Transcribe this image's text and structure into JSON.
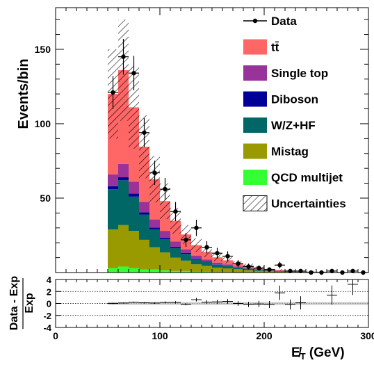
{
  "chart_data": [
    {
      "type": "bar",
      "stacked": true,
      "ylabel": "Events/bin",
      "xlim": [
        0,
        300
      ],
      "ylim": [
        0,
        178
      ],
      "x_ticks": [
        "0",
        "100",
        "200",
        "300"
      ],
      "y_ticks": [
        "50",
        "100",
        "150"
      ],
      "bin_width": 10,
      "bin_left_edges": [
        50,
        60,
        70,
        80,
        90,
        100,
        110,
        120,
        130,
        140,
        150,
        160,
        170,
        180,
        190,
        200,
        210,
        220,
        230,
        240,
        250,
        260,
        270,
        280,
        290
      ],
      "series": [
        {
          "name": "QCD multijet",
          "color": "#33ff33",
          "values": [
            3,
            4,
            3,
            2,
            2,
            1.5,
            1,
            1,
            0.5,
            0.5,
            0.3,
            0.3,
            0.2,
            0.2,
            0.1,
            0.1,
            0.1,
            0,
            0,
            0,
            0,
            0,
            0,
            0,
            0
          ]
        },
        {
          "name": "Mistag",
          "color": "#999900",
          "values": [
            26,
            28,
            25,
            20,
            15,
            12,
            9,
            7,
            5,
            4,
            3,
            2.5,
            2,
            1.5,
            1,
            0.8,
            0.6,
            0.4,
            0.3,
            0.2,
            0.2,
            0.1,
            0.1,
            0.1,
            0
          ]
        },
        {
          "name": "W/Z+HF",
          "color": "#006666",
          "values": [
            27,
            30,
            23,
            17,
            12,
            9,
            6.5,
            4.5,
            3.5,
            2.5,
            2,
            1.5,
            1,
            0.8,
            0.6,
            0.4,
            0.3,
            0.2,
            0.2,
            0.1,
            0.1,
            0.1,
            0,
            0,
            0
          ]
        },
        {
          "name": "Diboson",
          "color": "#000099",
          "values": [
            2,
            2,
            2,
            1.5,
            1.2,
            1,
            0.8,
            0.6,
            0.4,
            0.3,
            0.2,
            0.2,
            0.1,
            0.1,
            0.1,
            0,
            0,
            0,
            0,
            0,
            0,
            0,
            0,
            0,
            0
          ]
        },
        {
          "name": "Single top",
          "color": "#993399",
          "values": [
            8,
            9,
            8,
            7,
            5.5,
            4.5,
            3.5,
            2.5,
            2,
            1.5,
            1.2,
            1,
            0.7,
            0.5,
            0.4,
            0.3,
            0.2,
            0.2,
            0.1,
            0.1,
            0.1,
            0,
            0,
            0,
            0
          ]
        },
        {
          "name": "tt̄",
          "color": "#ff6666",
          "values": [
            54,
            63,
            50,
            37,
            27,
            20,
            14,
            10,
            7,
            5,
            3.5,
            2.7,
            2,
            1.6,
            1.1,
            0.8,
            0.6,
            0.4,
            0.3,
            0.2,
            0.2,
            0.1,
            0.1,
            0.1,
            0
          ]
        }
      ],
      "totals": [
        120,
        136,
        111,
        84.5,
        62.7,
        48,
        34.8,
        25.6,
        18.4,
        13.8,
        10.2,
        8.2,
        6,
        4.7,
        3.3,
        2.4,
        1.8,
        1.2,
        0.9,
        0.6,
        0.6,
        0.3,
        0.2,
        0.2,
        0
      ],
      "uncertainty_fraction": 0.25,
      "data": {
        "name": "Data",
        "x": [
          55,
          65,
          75,
          85,
          95,
          105,
          115,
          125,
          135,
          145,
          155,
          165,
          175,
          185,
          195,
          205,
          215,
          225,
          235,
          245,
          255,
          265,
          275,
          285,
          295
        ],
        "y": [
          121,
          145,
          134,
          94,
          67,
          56,
          41,
          22,
          30,
          17,
          13,
          11,
          6,
          4,
          3,
          2,
          5,
          1,
          1,
          0,
          0,
          1,
          0,
          1,
          0
        ],
        "yerr": [
          11,
          12,
          11.6,
          9.7,
          8.2,
          7.5,
          6.4,
          4.7,
          5.5,
          4.1,
          3.6,
          3.3,
          2.4,
          2,
          1.7,
          1.4,
          2.2,
          1,
          1,
          0,
          0,
          1,
          0,
          1,
          0
        ]
      },
      "legend": {
        "placement": "top-right",
        "items": [
          {
            "label": "Data",
            "kind": "marker"
          },
          {
            "label": "tt̄",
            "kind": "fill",
            "color": "#ff6666"
          },
          {
            "label": "Single top",
            "kind": "fill",
            "color": "#993399"
          },
          {
            "label": "Diboson",
            "kind": "fill",
            "color": "#000099"
          },
          {
            "label": "W/Z+HF",
            "kind": "fill",
            "color": "#006666"
          },
          {
            "label": "Mistag",
            "kind": "fill",
            "color": "#999900"
          },
          {
            "label": "QCD multijet",
            "kind": "fill",
            "color": "#33ff33"
          },
          {
            "label": "Uncertainties",
            "kind": "hatch"
          }
        ]
      }
    },
    {
      "type": "scatter",
      "ylabel_top": "Data - Exp",
      "ylabel_bottom": "Exp",
      "xlabel": "E̸T (GeV)",
      "xlabel_main": "E̸",
      "xlabel_sub": "T",
      "xlabel_unit": " (GeV)",
      "xlim": [
        0,
        300
      ],
      "ylim": [
        -4,
        4
      ],
      "x_ticks": [
        "0",
        "100",
        "200",
        "300"
      ],
      "y_ticks": [
        "4",
        "2",
        "0",
        "-2",
        "-4"
      ],
      "reference_lines": [
        2,
        0,
        -2
      ],
      "uncertainty_band": 0.25,
      "x": [
        55,
        65,
        75,
        85,
        95,
        105,
        115,
        125,
        135,
        145,
        155,
        165,
        175,
        185,
        195,
        205,
        215,
        225,
        235,
        265,
        285
      ],
      "y": [
        0.01,
        0.07,
        0.2,
        0.11,
        0.07,
        0.17,
        0.18,
        -0.14,
        0.63,
        0.23,
        0.27,
        0.34,
        0,
        -0.15,
        -0.09,
        -0.17,
        1.78,
        -0.17,
        0.11,
        1.4,
        3.2
      ],
      "xerr": 5,
      "yerr": [
        0.1,
        0.09,
        0.1,
        0.12,
        0.13,
        0.16,
        0.19,
        0.18,
        0.3,
        0.3,
        0.35,
        0.4,
        0.4,
        0.43,
        0.52,
        0.58,
        1.2,
        0.83,
        1.1,
        1.6,
        1.8
      ]
    }
  ]
}
